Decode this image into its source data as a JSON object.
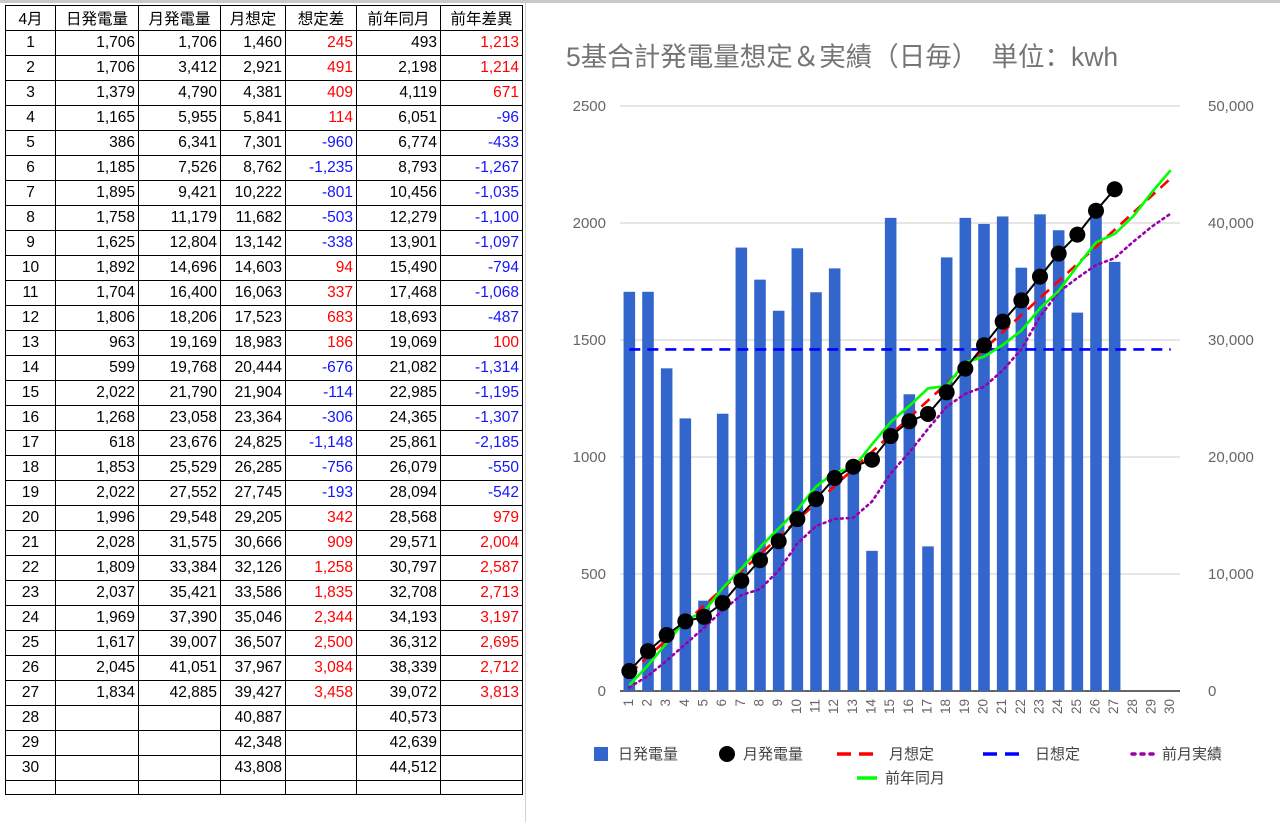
{
  "table": {
    "headers": [
      "4月",
      "日発電量",
      "月発電量",
      "月想定",
      "想定差",
      "前年同月",
      "前年差異"
    ],
    "rows": [
      [
        "1",
        "1,706",
        "1,706",
        "1,460",
        "245",
        "493",
        "1,213"
      ],
      [
        "2",
        "1,706",
        "3,412",
        "2,921",
        "491",
        "2,198",
        "1,214"
      ],
      [
        "3",
        "1,379",
        "4,790",
        "4,381",
        "409",
        "4,119",
        "671"
      ],
      [
        "4",
        "1,165",
        "5,955",
        "5,841",
        "114",
        "6,051",
        "-96"
      ],
      [
        "5",
        "386",
        "6,341",
        "7,301",
        "-960",
        "6,774",
        "-433"
      ],
      [
        "6",
        "1,185",
        "7,526",
        "8,762",
        "-1,235",
        "8,793",
        "-1,267"
      ],
      [
        "7",
        "1,895",
        "9,421",
        "10,222",
        "-801",
        "10,456",
        "-1,035"
      ],
      [
        "8",
        "1,758",
        "11,179",
        "11,682",
        "-503",
        "12,279",
        "-1,100"
      ],
      [
        "9",
        "1,625",
        "12,804",
        "13,142",
        "-338",
        "13,901",
        "-1,097"
      ],
      [
        "10",
        "1,892",
        "14,696",
        "14,603",
        "94",
        "15,490",
        "-794"
      ],
      [
        "11",
        "1,704",
        "16,400",
        "16,063",
        "337",
        "17,468",
        "-1,068"
      ],
      [
        "12",
        "1,806",
        "18,206",
        "17,523",
        "683",
        "18,693",
        "-487"
      ],
      [
        "13",
        "963",
        "19,169",
        "18,983",
        "186",
        "19,069",
        "100"
      ],
      [
        "14",
        "599",
        "19,768",
        "20,444",
        "-676",
        "21,082",
        "-1,314"
      ],
      [
        "15",
        "2,022",
        "21,790",
        "21,904",
        "-114",
        "22,985",
        "-1,195"
      ],
      [
        "16",
        "1,268",
        "23,058",
        "23,364",
        "-306",
        "24,365",
        "-1,307"
      ],
      [
        "17",
        "618",
        "23,676",
        "24,825",
        "-1,148",
        "25,861",
        "-2,185"
      ],
      [
        "18",
        "1,853",
        "25,529",
        "26,285",
        "-756",
        "26,079",
        "-550"
      ],
      [
        "19",
        "2,022",
        "27,552",
        "27,745",
        "-193",
        "28,094",
        "-542"
      ],
      [
        "20",
        "1,996",
        "29,548",
        "29,205",
        "342",
        "28,568",
        "979"
      ],
      [
        "21",
        "2,028",
        "31,575",
        "30,666",
        "909",
        "29,571",
        "2,004"
      ],
      [
        "22",
        "1,809",
        "33,384",
        "32,126",
        "1,258",
        "30,797",
        "2,587"
      ],
      [
        "23",
        "2,037",
        "35,421",
        "33,586",
        "1,835",
        "32,708",
        "2,713"
      ],
      [
        "24",
        "1,969",
        "37,390",
        "35,046",
        "2,344",
        "34,193",
        "3,197"
      ],
      [
        "25",
        "1,617",
        "39,007",
        "36,507",
        "2,500",
        "36,312",
        "2,695"
      ],
      [
        "26",
        "2,045",
        "41,051",
        "37,967",
        "3,084",
        "38,339",
        "2,712"
      ],
      [
        "27",
        "1,834",
        "42,885",
        "39,427",
        "3,458",
        "39,072",
        "3,813"
      ],
      [
        "28",
        "",
        "",
        "40,887",
        "",
        "40,573",
        ""
      ],
      [
        "29",
        "",
        "",
        "42,348",
        "",
        "42,639",
        ""
      ],
      [
        "30",
        "",
        "",
        "43,808",
        "",
        "44,512",
        ""
      ],
      [
        "",
        "",
        "",
        "",
        "",
        "",
        ""
      ]
    ]
  },
  "chart_data": {
    "type": "bar",
    "title": "5基合計発電量想定＆実績（日毎）　単位：kwh",
    "categories": [
      "1",
      "2",
      "3",
      "4",
      "5",
      "6",
      "7",
      "8",
      "9",
      "10",
      "11",
      "12",
      "13",
      "14",
      "15",
      "16",
      "17",
      "18",
      "19",
      "20",
      "21",
      "22",
      "23",
      "24",
      "25",
      "26",
      "27",
      "28",
      "29",
      "30"
    ],
    "left_axis": {
      "min": 0,
      "max": 2500,
      "ticks": [
        "0",
        "500",
        "1000",
        "1500",
        "2000",
        "2500"
      ]
    },
    "right_axis": {
      "min": 0,
      "max": 50000,
      "ticks": [
        "0",
        "10,000",
        "20,000",
        "30,000",
        "40,000",
        "50,000"
      ]
    },
    "grid": true,
    "legend_position": "bottom",
    "series": [
      {
        "name": "日発電量",
        "kind": "bar",
        "axis": "left",
        "color": "#3366cc",
        "values": [
          1706,
          1706,
          1379,
          1165,
          386,
          1185,
          1895,
          1758,
          1625,
          1892,
          1704,
          1806,
          963,
          599,
          2022,
          1268,
          618,
          1853,
          2022,
          1996,
          2028,
          1809,
          2037,
          1969,
          1617,
          2045,
          1834,
          null,
          null,
          null
        ]
      },
      {
        "name": "月発電量",
        "kind": "line-markers",
        "axis": "right",
        "color": "#000000",
        "values": [
          1706,
          3412,
          4790,
          5955,
          6341,
          7526,
          9421,
          11179,
          12804,
          14696,
          16400,
          18206,
          19169,
          19768,
          21790,
          23058,
          23676,
          25529,
          27552,
          29548,
          31575,
          33384,
          35421,
          37390,
          39007,
          41051,
          42885,
          null,
          null,
          null
        ]
      },
      {
        "name": "月想定",
        "kind": "dashed",
        "axis": "right",
        "color": "#ff0000",
        "values": [
          1460,
          2921,
          4381,
          5841,
          7301,
          8762,
          10222,
          11682,
          13142,
          14603,
          16063,
          17523,
          18983,
          20444,
          21904,
          23364,
          24825,
          26285,
          27745,
          29205,
          30666,
          32126,
          33586,
          35046,
          36507,
          37967,
          39427,
          40887,
          42348,
          43808
        ]
      },
      {
        "name": "日想定",
        "kind": "dashed",
        "axis": "left",
        "color": "#0000ff",
        "values": [
          1460,
          1460,
          1460,
          1460,
          1460,
          1460,
          1460,
          1460,
          1460,
          1460,
          1460,
          1460,
          1460,
          1460,
          1460,
          1460,
          1460,
          1460,
          1460,
          1460,
          1460,
          1460,
          1460,
          1460,
          1460,
          1460,
          1460,
          1460,
          1460,
          1460
        ]
      },
      {
        "name": "前月実績",
        "kind": "dotted",
        "axis": "right",
        "color": "#9900aa",
        "values": [
          300,
          1300,
          2600,
          4000,
          5400,
          6900,
          8200,
          8700,
          10300,
          12600,
          14100,
          14700,
          14800,
          16200,
          18600,
          20400,
          22400,
          24300,
          25400,
          26000,
          27400,
          29200,
          32000,
          34100,
          35300,
          36400,
          37000,
          38400,
          39700,
          40800
        ]
      },
      {
        "name": "前年同月",
        "kind": "line",
        "axis": "right",
        "color": "#00ff00",
        "values": [
          493,
          2198,
          4119,
          6051,
          6774,
          8793,
          10456,
          12279,
          13901,
          15490,
          17468,
          18693,
          19069,
          21082,
          22985,
          24365,
          25861,
          26079,
          28094,
          28568,
          29571,
          30797,
          32708,
          34193,
          36312,
          38339,
          39072,
          40573,
          42639,
          44512
        ]
      }
    ]
  }
}
